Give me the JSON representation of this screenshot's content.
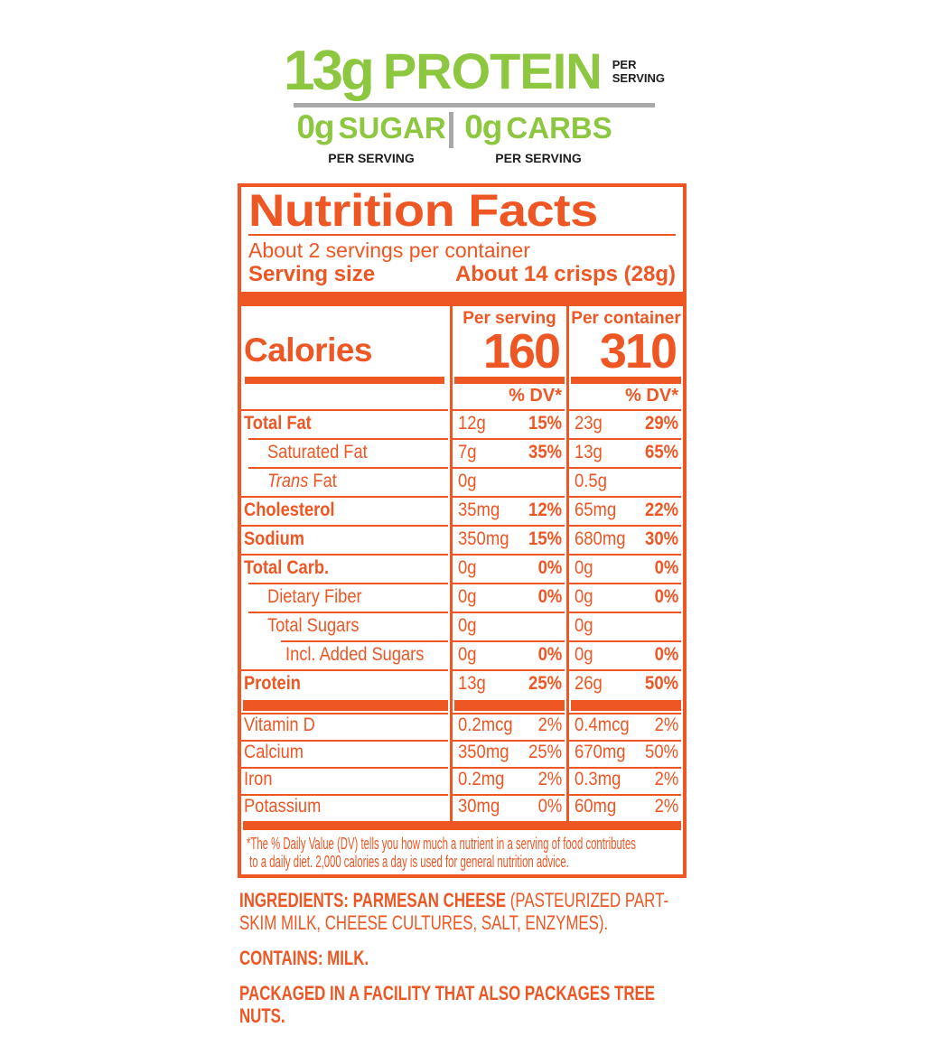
{
  "colors": {
    "orange": "#EE5623",
    "green": "#8DC63F",
    "gray": "#A8A8A8",
    "black": "#1D1D1B"
  },
  "claims": {
    "protein": {
      "amount": "13g",
      "label": "PROTEIN",
      "per": "PER SERVING"
    },
    "sugar": {
      "amount": "0g",
      "label": "SUGAR",
      "per": "PER SERVING"
    },
    "carbs": {
      "amount": "0g",
      "label": "CARBS",
      "per": "PER SERVING"
    }
  },
  "panel": {
    "title": "Nutrition Facts",
    "servings_per_container": "About 2 servings per container",
    "serving_size_label": "Serving size",
    "serving_size_value": "About 14 crisps (28g)",
    "calories": {
      "label": "Calories",
      "col1_header": "Per serving",
      "col1_value": "160",
      "col2_header": "Per container",
      "col2_value": "310",
      "dv_header": "% DV*"
    },
    "rows": [
      {
        "label": "Total Fat",
        "bold": true,
        "indent": 0,
        "per_serving": {
          "amount": "12g",
          "dv": "15%"
        },
        "per_container": {
          "amount": "23g",
          "dv": "29%"
        }
      },
      {
        "label": "Saturated Fat",
        "bold": false,
        "indent": 1,
        "per_serving": {
          "amount": "7g",
          "dv": "35%"
        },
        "per_container": {
          "amount": "13g",
          "dv": "65%"
        }
      },
      {
        "label": "Fat",
        "italic_prefix": "Trans",
        "bold": false,
        "indent": 1,
        "per_serving": {
          "amount": "0g",
          "dv": ""
        },
        "per_container": {
          "amount": "0.5g",
          "dv": ""
        }
      },
      {
        "label": "Cholesterol",
        "bold": true,
        "indent": 0,
        "per_serving": {
          "amount": "35mg",
          "dv": "12%"
        },
        "per_container": {
          "amount": "65mg",
          "dv": "22%"
        }
      },
      {
        "label": "Sodium",
        "bold": true,
        "indent": 0,
        "per_serving": {
          "amount": "350mg",
          "dv": "15%"
        },
        "per_container": {
          "amount": "680mg",
          "dv": "30%"
        }
      },
      {
        "label": "Total Carb.",
        "bold": true,
        "indent": 0,
        "per_serving": {
          "amount": "0g",
          "dv": "0%"
        },
        "per_container": {
          "amount": "0g",
          "dv": "0%"
        }
      },
      {
        "label": "Dietary Fiber",
        "bold": false,
        "indent": 1,
        "per_serving": {
          "amount": "0g",
          "dv": "0%"
        },
        "per_container": {
          "amount": "0g",
          "dv": "0%"
        }
      },
      {
        "label": "Total Sugars",
        "bold": false,
        "indent": 1,
        "per_serving": {
          "amount": "0g",
          "dv": ""
        },
        "per_container": {
          "amount": "0g",
          "dv": ""
        }
      },
      {
        "label": "Incl. Added Sugars",
        "bold": false,
        "indent": 2,
        "per_serving": {
          "amount": "0g",
          "dv": "0%"
        },
        "per_container": {
          "amount": "0g",
          "dv": "0%"
        }
      },
      {
        "label": "Protein",
        "bold": true,
        "indent": 0,
        "per_serving": {
          "amount": "13g",
          "dv": "25%"
        },
        "per_container": {
          "amount": "26g",
          "dv": "50%"
        }
      }
    ],
    "vitamins": [
      {
        "label": "Vitamin D",
        "bold": false,
        "indent": 0,
        "per_serving": {
          "amount": "0.2mcg",
          "dv": "2%"
        },
        "per_container": {
          "amount": "0.4mcg",
          "dv": "2%"
        }
      },
      {
        "label": "Calcium",
        "bold": false,
        "indent": 0,
        "per_serving": {
          "amount": "350mg",
          "dv": "25%"
        },
        "per_container": {
          "amount": "670mg",
          "dv": "50%"
        }
      },
      {
        "label": "Iron",
        "bold": false,
        "indent": 0,
        "per_serving": {
          "amount": "0.2mg",
          "dv": "2%"
        },
        "per_container": {
          "amount": "0.3mg",
          "dv": "2%"
        }
      },
      {
        "label": "Potassium",
        "bold": false,
        "indent": 0,
        "per_serving": {
          "amount": "30mg",
          "dv": "0%"
        },
        "per_container": {
          "amount": "60mg",
          "dv": "2%"
        }
      }
    ],
    "footnote": "*The % Daily Value (DV) tells you how much a nutrient in a serving of food contributes\n to a daily diet. 2,000 calories a day is used for general nutrition advice."
  },
  "ingredients": {
    "bold_lead": "INGREDIENTS: PARMESAN CHEESE",
    "rest": " (PASTEURIZED PART-SKIM MILK, CHEESE CULTURES, SALT,  ENZYMES).",
    "contains": "CONTAINS: MILK.",
    "allergen": "PACKAGED IN A FACILITY THAT ALSO PACKAGES TREE NUTS."
  }
}
